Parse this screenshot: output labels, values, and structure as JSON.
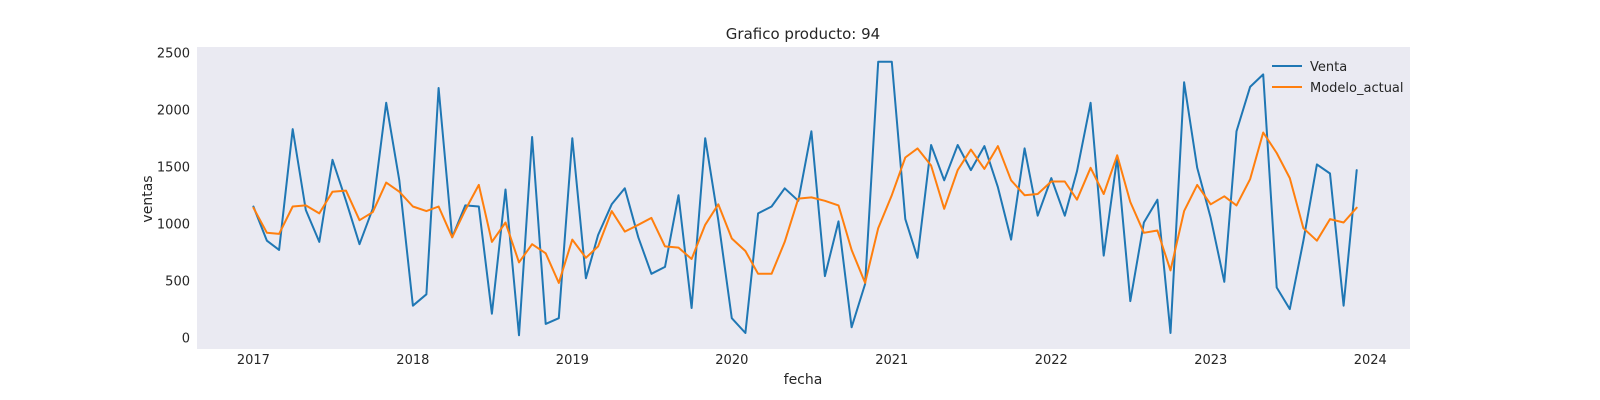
{
  "chart_data": {
    "type": "line",
    "title": "Grafico producto: 94",
    "xlabel": "fecha",
    "ylabel": "ventas",
    "xlim": [
      "2016-08-25",
      "2024-04-01"
    ],
    "ylim": [
      -100,
      2550
    ],
    "x_ticks": [
      "2017",
      "2018",
      "2019",
      "2020",
      "2021",
      "2022",
      "2023",
      "2024"
    ],
    "y_ticks": [
      0,
      500,
      1000,
      1500,
      2000,
      2500
    ],
    "grid": false,
    "legend_position": "top-right",
    "background": "#eaeaf2",
    "x": [
      "2017-01",
      "2017-02",
      "2017-03",
      "2017-04",
      "2017-05",
      "2017-06",
      "2017-07",
      "2017-08",
      "2017-09",
      "2017-10",
      "2017-11",
      "2017-12",
      "2018-01",
      "2018-02",
      "2018-03",
      "2018-04",
      "2018-05",
      "2018-06",
      "2018-07",
      "2018-08",
      "2018-09",
      "2018-10",
      "2018-11",
      "2018-12",
      "2019-01",
      "2019-02",
      "2019-03",
      "2019-04",
      "2019-05",
      "2019-06",
      "2019-07",
      "2019-08",
      "2019-09",
      "2019-10",
      "2019-11",
      "2019-12",
      "2020-01",
      "2020-02",
      "2020-03",
      "2020-04",
      "2020-05",
      "2020-06",
      "2020-07",
      "2020-08",
      "2020-09",
      "2020-10",
      "2020-11",
      "2020-12",
      "2021-01",
      "2021-02",
      "2021-03",
      "2021-04",
      "2021-05",
      "2021-06",
      "2021-07",
      "2021-08",
      "2021-09",
      "2021-10",
      "2021-11",
      "2021-12",
      "2022-01",
      "2022-02",
      "2022-03",
      "2022-04",
      "2022-05",
      "2022-06",
      "2022-07",
      "2022-08",
      "2022-09",
      "2022-10",
      "2022-11",
      "2022-12",
      "2023-01",
      "2023-02",
      "2023-03",
      "2023-04",
      "2023-05",
      "2023-06",
      "2023-07",
      "2023-08",
      "2023-09",
      "2023-10",
      "2023-11",
      "2023-12"
    ],
    "series": [
      {
        "name": "Venta",
        "color": "#1f77b4",
        "values": [
          1150,
          850,
          770,
          1830,
          1120,
          840,
          1560,
          1200,
          820,
          1130,
          2060,
          1380,
          280,
          380,
          2190,
          880,
          1160,
          1150,
          210,
          1300,
          20,
          1760,
          120,
          170,
          1750,
          520,
          900,
          1170,
          1310,
          880,
          560,
          620,
          1250,
          260,
          1750,
          1030,
          170,
          40,
          1090,
          1150,
          1310,
          1200,
          1810,
          540,
          1020,
          90,
          470,
          2420,
          2420,
          1040,
          700,
          1690,
          1380,
          1690,
          1470,
          1680,
          1320,
          860,
          1660,
          1070,
          1400,
          1070,
          1460,
          2060,
          720,
          1580,
          320,
          1010,
          1210,
          40,
          2240,
          1490,
          1050,
          490,
          1810,
          2200,
          2310,
          440,
          250,
          850,
          1520,
          1440,
          280,
          1470
        ]
      },
      {
        "name": "Modelo_actual",
        "color": "#ff7f0e",
        "values": [
          1140,
          920,
          910,
          1150,
          1160,
          1090,
          1280,
          1290,
          1030,
          1100,
          1360,
          1280,
          1150,
          1110,
          1150,
          880,
          1120,
          1340,
          840,
          1010,
          660,
          820,
          740,
          480,
          860,
          700,
          800,
          1110,
          930,
          990,
          1050,
          800,
          790,
          690,
          990,
          1170,
          870,
          760,
          560,
          560,
          840,
          1220,
          1230,
          1200,
          1160,
          770,
          480,
          960,
          1250,
          1580,
          1660,
          1510,
          1130,
          1470,
          1650,
          1480,
          1680,
          1380,
          1250,
          1260,
          1370,
          1370,
          1210,
          1490,
          1260,
          1600,
          1190,
          920,
          940,
          590,
          1110,
          1340,
          1170,
          1240,
          1160,
          1390,
          1800,
          1620,
          1400,
          960,
          850,
          1040,
          1010,
          1140
        ]
      }
    ]
  }
}
